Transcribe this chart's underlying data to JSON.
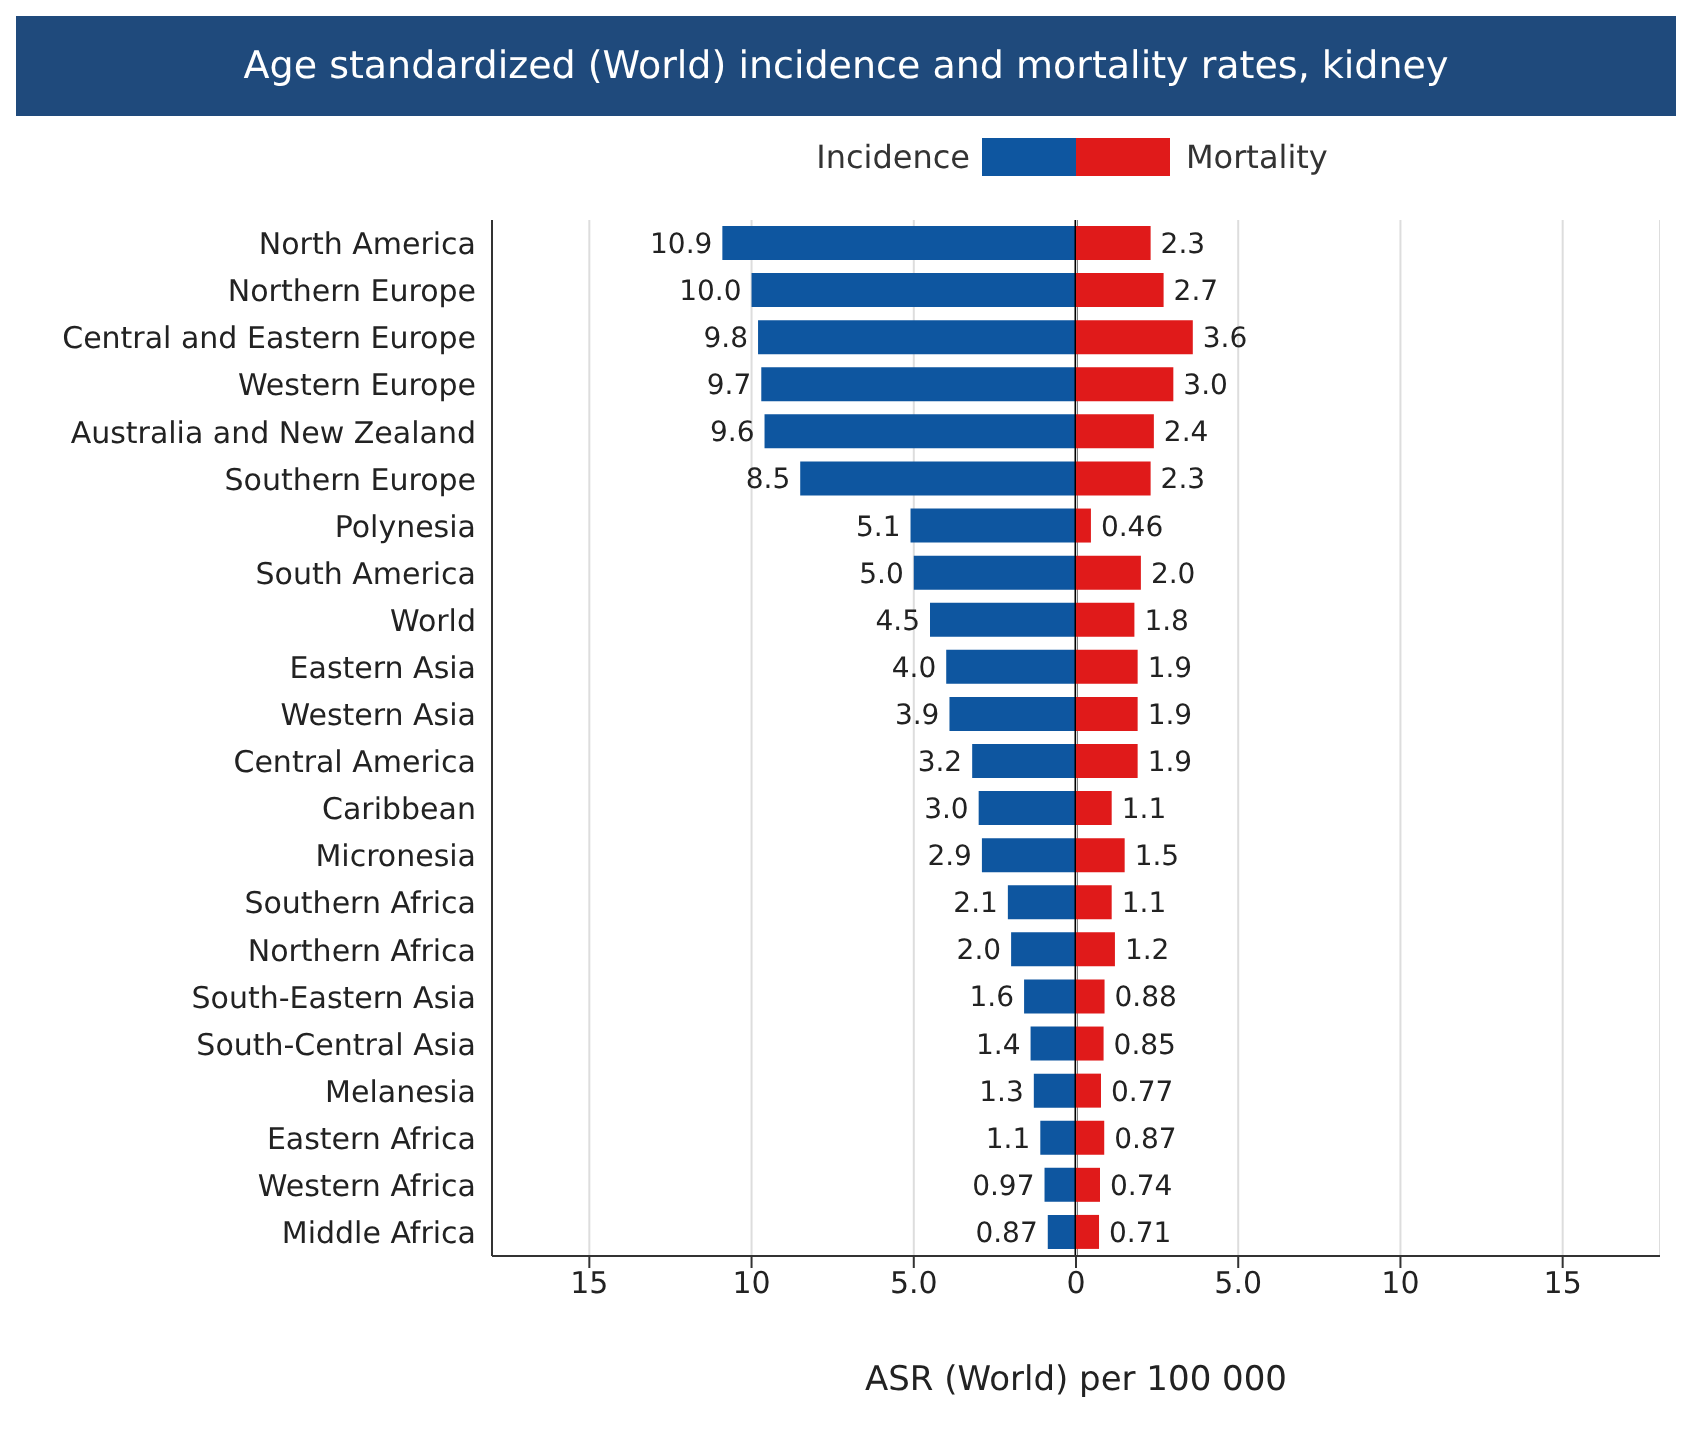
{
  "chart_data": [
    {
      "type": "bar",
      "orientation": "horizontal",
      "title": "Age standardized (World) incidence and mortality rates, kidney",
      "xlabel": "ASR (World) per 100 000",
      "categories": [
        "North America",
        "Northern Europe",
        "Central and Eastern Europe",
        "Western Europe",
        "Australia and New Zealand",
        "Southern Europe",
        "Polynesia",
        "South America",
        "World",
        "Eastern Asia",
        "Western Asia",
        "Central America",
        "Caribbean",
        "Micronesia",
        "Southern Africa",
        "Northern Africa",
        "South-Eastern Asia",
        "South-Central Asia",
        "Melanesia",
        "Eastern Africa",
        "Western Africa",
        "Middle Africa"
      ],
      "series": [
        {
          "name": "Incidence",
          "color": "#0e56a0",
          "values": [
            10.9,
            10.0,
            9.8,
            9.7,
            9.6,
            8.5,
            5.1,
            5.0,
            4.5,
            4.0,
            3.9,
            3.2,
            3.0,
            2.9,
            2.1,
            2.0,
            1.6,
            1.4,
            1.3,
            1.1,
            0.97,
            0.87
          ],
          "value_labels": [
            "10.9",
            "10.0",
            "9.8",
            "9.7",
            "9.6",
            "8.5",
            "5.1",
            "5.0",
            "4.5",
            "4.0",
            "3.9",
            "3.2",
            "3.0",
            "2.9",
            "2.1",
            "2.0",
            "1.6",
            "1.4",
            "1.3",
            "1.1",
            "0.97",
            "0.87"
          ]
        }
      ],
      "xlim": [
        18,
        0
      ],
      "xticks": [
        15,
        10,
        {
          "value": 5,
          "label": "5.0"
        },
        0
      ],
      "ref_lines": [
        {
          "axis": "x",
          "value": 0,
          "color": "#000000"
        }
      ],
      "grid": "x",
      "legend": "top right"
    },
    {
      "type": "bar",
      "orientation": "horizontal",
      "series": [
        {
          "name": "Mortality",
          "color": "#e01a1a",
          "values": [
            2.3,
            2.7,
            3.6,
            3.0,
            2.4,
            2.3,
            0.46,
            2.0,
            1.8,
            1.9,
            1.9,
            1.9,
            1.1,
            1.5,
            1.1,
            1.2,
            0.88,
            0.85,
            0.77,
            0.87,
            0.74,
            0.71
          ],
          "value_labels": [
            "2.3",
            "2.7",
            "3.6",
            "3.0",
            "2.4",
            "2.3",
            "0.46",
            "2.0",
            "1.8",
            "1.9",
            "1.9",
            "1.9",
            "1.1",
            "1.5",
            "1.1",
            "1.2",
            "0.88",
            "0.85",
            "0.77",
            "0.87",
            "0.74",
            "0.71"
          ]
        }
      ],
      "xlim": [
        0,
        18
      ],
      "xticks": [
        {
          "value": 5,
          "label": "5.0"
        },
        10,
        15
      ],
      "tick_labels": "x",
      "grid": "x",
      "legend": "top left"
    }
  ]
}
